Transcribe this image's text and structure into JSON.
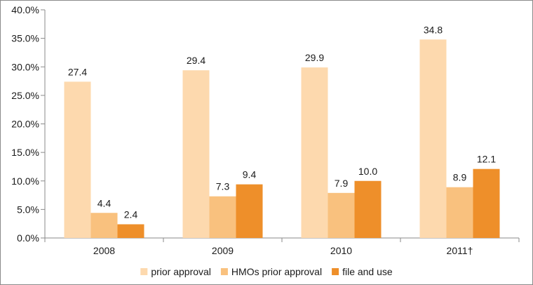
{
  "chart_data": {
    "type": "bar",
    "title": "",
    "xlabel": "",
    "ylabel": "",
    "ylim": [
      0,
      40
    ],
    "ytick_step": 5,
    "ytick_format": "percent_1dp",
    "categories": [
      "2008",
      "2009",
      "2010",
      "2011†"
    ],
    "series": [
      {
        "name": "prior approval",
        "color": "#FDD9AE",
        "values": [
          27.4,
          29.4,
          29.9,
          34.8
        ],
        "labels": [
          "27.4",
          "29.4",
          "29.9",
          "34.8"
        ]
      },
      {
        "name": "HMOs prior approval",
        "color": "#F9C17E",
        "values": [
          4.4,
          7.3,
          7.9,
          8.9
        ],
        "labels": [
          "4.4",
          "7.3",
          "7.9",
          "8.9"
        ]
      },
      {
        "name": "file and use",
        "color": "#EE8F2A",
        "values": [
          2.4,
          9.4,
          10.0,
          12.1
        ],
        "labels": [
          "2.4",
          "9.4",
          "10.0",
          "12.1"
        ]
      }
    ],
    "legend": {
      "position": "bottom-center"
    },
    "grid": false
  },
  "colors": {
    "frame": "#8a8a8a",
    "axis": "#8a8a8a",
    "text": "#1a1a1a"
  }
}
